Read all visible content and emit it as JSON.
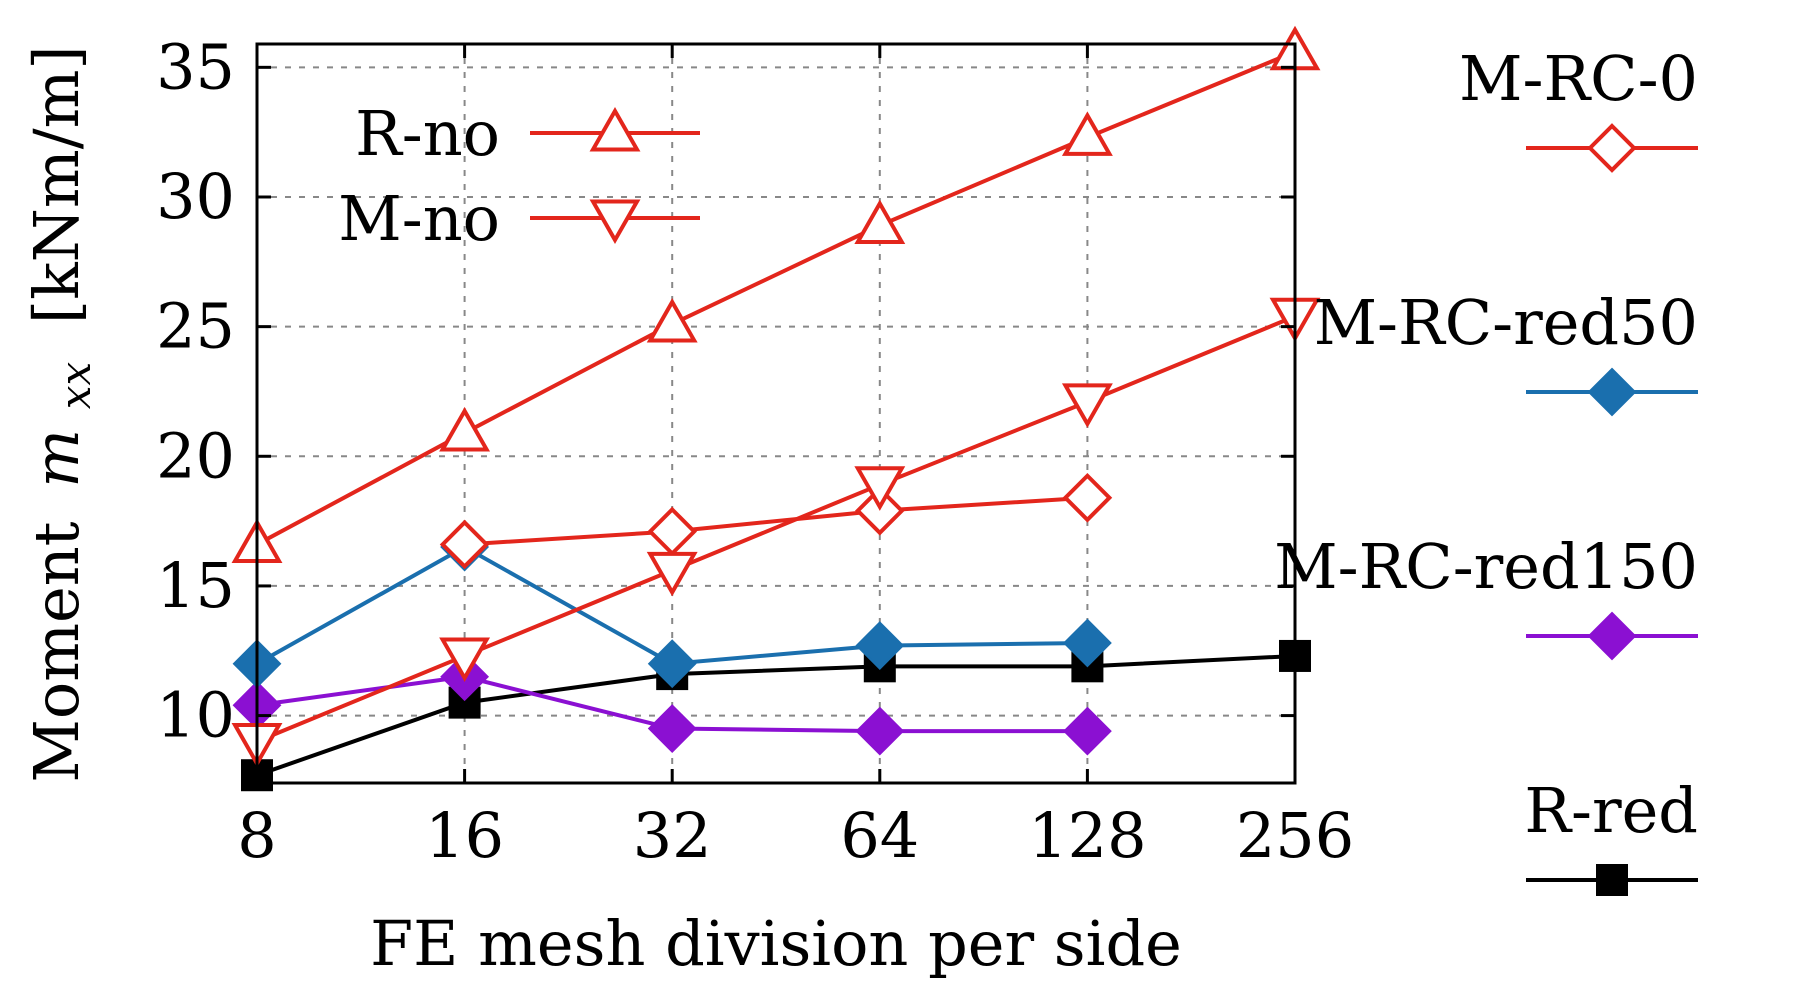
{
  "chart_data": {
    "type": "line",
    "xlabel": "FE mesh division per side",
    "ylabel": "Moment",
    "ylabel_symbol": "m",
    "ylabel_subscript": "xx",
    "ylabel_unit": "[kNm/m]",
    "x_scale": "log2",
    "x_ticks": [
      8,
      16,
      32,
      64,
      128,
      256
    ],
    "y_ticks": [
      10,
      15,
      20,
      25,
      30,
      35
    ],
    "ylim": [
      7.4,
      35.9
    ],
    "grid": true,
    "series": [
      {
        "name": "R-no",
        "color": "#e3261c",
        "marker": "triangle-up-open",
        "legend": "inside-top-left",
        "x": [
          8,
          16,
          32,
          64,
          128,
          256
        ],
        "values": [
          16.6,
          20.9,
          25.1,
          28.9,
          32.3,
          35.6
        ]
      },
      {
        "name": "M-no",
        "color": "#e3261c",
        "marker": "triangle-down-open",
        "legend": "inside-top-left",
        "x": [
          8,
          16,
          32,
          64,
          128,
          256
        ],
        "values": [
          9.0,
          12.3,
          15.6,
          18.9,
          22.1,
          25.4
        ]
      },
      {
        "name": "M-RC-0",
        "color": "#e3261c",
        "marker": "diamond-open",
        "legend": "right",
        "x": [
          16,
          32,
          64,
          128
        ],
        "values": [
          16.6,
          17.1,
          17.9,
          18.4
        ]
      },
      {
        "name": "M-RC-red50",
        "color": "#1a6fae",
        "marker": "diamond-filled",
        "legend": "right",
        "x": [
          8,
          16,
          32,
          64,
          128
        ],
        "values": [
          12.0,
          16.5,
          12.0,
          12.7,
          12.8
        ]
      },
      {
        "name": "M-RC-red150",
        "color": "#8b10d2",
        "marker": "diamond-filled",
        "legend": "right",
        "x": [
          8,
          16,
          32,
          64,
          128
        ],
        "values": [
          10.4,
          11.5,
          9.5,
          9.4,
          9.4
        ]
      },
      {
        "name": "R-red",
        "color": "#000000",
        "marker": "square-filled",
        "legend": "right",
        "x": [
          8,
          16,
          32,
          64,
          128,
          256
        ],
        "values": [
          7.7,
          10.5,
          11.6,
          11.9,
          11.9,
          12.3
        ]
      }
    ]
  }
}
